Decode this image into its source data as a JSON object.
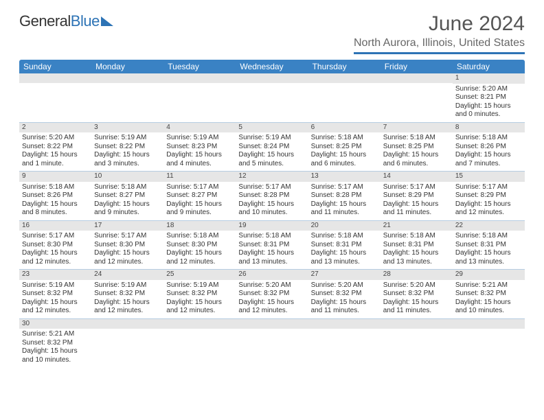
{
  "brand": {
    "text1": "General",
    "text2": "Blue"
  },
  "title": "June 2024",
  "location": "North Aurora, Illinois, United States",
  "header_bg": "#3a82c4",
  "daynum_bg": "#e6e6e6",
  "row_border": "#b6cde2",
  "dow": [
    "Sunday",
    "Monday",
    "Tuesday",
    "Wednesday",
    "Thursday",
    "Friday",
    "Saturday"
  ],
  "weeks": [
    [
      {
        "n": "",
        "sr": "",
        "ss": "",
        "dl": ""
      },
      {
        "n": "",
        "sr": "",
        "ss": "",
        "dl": ""
      },
      {
        "n": "",
        "sr": "",
        "ss": "",
        "dl": ""
      },
      {
        "n": "",
        "sr": "",
        "ss": "",
        "dl": ""
      },
      {
        "n": "",
        "sr": "",
        "ss": "",
        "dl": ""
      },
      {
        "n": "",
        "sr": "",
        "ss": "",
        "dl": ""
      },
      {
        "n": "1",
        "sr": "Sunrise: 5:20 AM",
        "ss": "Sunset: 8:21 PM",
        "dl": "Daylight: 15 hours and 0 minutes."
      }
    ],
    [
      {
        "n": "2",
        "sr": "Sunrise: 5:20 AM",
        "ss": "Sunset: 8:22 PM",
        "dl": "Daylight: 15 hours and 1 minute."
      },
      {
        "n": "3",
        "sr": "Sunrise: 5:19 AM",
        "ss": "Sunset: 8:22 PM",
        "dl": "Daylight: 15 hours and 3 minutes."
      },
      {
        "n": "4",
        "sr": "Sunrise: 5:19 AM",
        "ss": "Sunset: 8:23 PM",
        "dl": "Daylight: 15 hours and 4 minutes."
      },
      {
        "n": "5",
        "sr": "Sunrise: 5:19 AM",
        "ss": "Sunset: 8:24 PM",
        "dl": "Daylight: 15 hours and 5 minutes."
      },
      {
        "n": "6",
        "sr": "Sunrise: 5:18 AM",
        "ss": "Sunset: 8:25 PM",
        "dl": "Daylight: 15 hours and 6 minutes."
      },
      {
        "n": "7",
        "sr": "Sunrise: 5:18 AM",
        "ss": "Sunset: 8:25 PM",
        "dl": "Daylight: 15 hours and 6 minutes."
      },
      {
        "n": "8",
        "sr": "Sunrise: 5:18 AM",
        "ss": "Sunset: 8:26 PM",
        "dl": "Daylight: 15 hours and 7 minutes."
      }
    ],
    [
      {
        "n": "9",
        "sr": "Sunrise: 5:18 AM",
        "ss": "Sunset: 8:26 PM",
        "dl": "Daylight: 15 hours and 8 minutes."
      },
      {
        "n": "10",
        "sr": "Sunrise: 5:18 AM",
        "ss": "Sunset: 8:27 PM",
        "dl": "Daylight: 15 hours and 9 minutes."
      },
      {
        "n": "11",
        "sr": "Sunrise: 5:17 AM",
        "ss": "Sunset: 8:27 PM",
        "dl": "Daylight: 15 hours and 9 minutes."
      },
      {
        "n": "12",
        "sr": "Sunrise: 5:17 AM",
        "ss": "Sunset: 8:28 PM",
        "dl": "Daylight: 15 hours and 10 minutes."
      },
      {
        "n": "13",
        "sr": "Sunrise: 5:17 AM",
        "ss": "Sunset: 8:28 PM",
        "dl": "Daylight: 15 hours and 11 minutes."
      },
      {
        "n": "14",
        "sr": "Sunrise: 5:17 AM",
        "ss": "Sunset: 8:29 PM",
        "dl": "Daylight: 15 hours and 11 minutes."
      },
      {
        "n": "15",
        "sr": "Sunrise: 5:17 AM",
        "ss": "Sunset: 8:29 PM",
        "dl": "Daylight: 15 hours and 12 minutes."
      }
    ],
    [
      {
        "n": "16",
        "sr": "Sunrise: 5:17 AM",
        "ss": "Sunset: 8:30 PM",
        "dl": "Daylight: 15 hours and 12 minutes."
      },
      {
        "n": "17",
        "sr": "Sunrise: 5:17 AM",
        "ss": "Sunset: 8:30 PM",
        "dl": "Daylight: 15 hours and 12 minutes."
      },
      {
        "n": "18",
        "sr": "Sunrise: 5:18 AM",
        "ss": "Sunset: 8:30 PM",
        "dl": "Daylight: 15 hours and 12 minutes."
      },
      {
        "n": "19",
        "sr": "Sunrise: 5:18 AM",
        "ss": "Sunset: 8:31 PM",
        "dl": "Daylight: 15 hours and 13 minutes."
      },
      {
        "n": "20",
        "sr": "Sunrise: 5:18 AM",
        "ss": "Sunset: 8:31 PM",
        "dl": "Daylight: 15 hours and 13 minutes."
      },
      {
        "n": "21",
        "sr": "Sunrise: 5:18 AM",
        "ss": "Sunset: 8:31 PM",
        "dl": "Daylight: 15 hours and 13 minutes."
      },
      {
        "n": "22",
        "sr": "Sunrise: 5:18 AM",
        "ss": "Sunset: 8:31 PM",
        "dl": "Daylight: 15 hours and 13 minutes."
      }
    ],
    [
      {
        "n": "23",
        "sr": "Sunrise: 5:19 AM",
        "ss": "Sunset: 8:32 PM",
        "dl": "Daylight: 15 hours and 12 minutes."
      },
      {
        "n": "24",
        "sr": "Sunrise: 5:19 AM",
        "ss": "Sunset: 8:32 PM",
        "dl": "Daylight: 15 hours and 12 minutes."
      },
      {
        "n": "25",
        "sr": "Sunrise: 5:19 AM",
        "ss": "Sunset: 8:32 PM",
        "dl": "Daylight: 15 hours and 12 minutes."
      },
      {
        "n": "26",
        "sr": "Sunrise: 5:20 AM",
        "ss": "Sunset: 8:32 PM",
        "dl": "Daylight: 15 hours and 12 minutes."
      },
      {
        "n": "27",
        "sr": "Sunrise: 5:20 AM",
        "ss": "Sunset: 8:32 PM",
        "dl": "Daylight: 15 hours and 11 minutes."
      },
      {
        "n": "28",
        "sr": "Sunrise: 5:20 AM",
        "ss": "Sunset: 8:32 PM",
        "dl": "Daylight: 15 hours and 11 minutes."
      },
      {
        "n": "29",
        "sr": "Sunrise: 5:21 AM",
        "ss": "Sunset: 8:32 PM",
        "dl": "Daylight: 15 hours and 10 minutes."
      }
    ],
    [
      {
        "n": "30",
        "sr": "Sunrise: 5:21 AM",
        "ss": "Sunset: 8:32 PM",
        "dl": "Daylight: 15 hours and 10 minutes."
      },
      {
        "n": "",
        "sr": "",
        "ss": "",
        "dl": ""
      },
      {
        "n": "",
        "sr": "",
        "ss": "",
        "dl": ""
      },
      {
        "n": "",
        "sr": "",
        "ss": "",
        "dl": ""
      },
      {
        "n": "",
        "sr": "",
        "ss": "",
        "dl": ""
      },
      {
        "n": "",
        "sr": "",
        "ss": "",
        "dl": ""
      },
      {
        "n": "",
        "sr": "",
        "ss": "",
        "dl": ""
      }
    ]
  ]
}
